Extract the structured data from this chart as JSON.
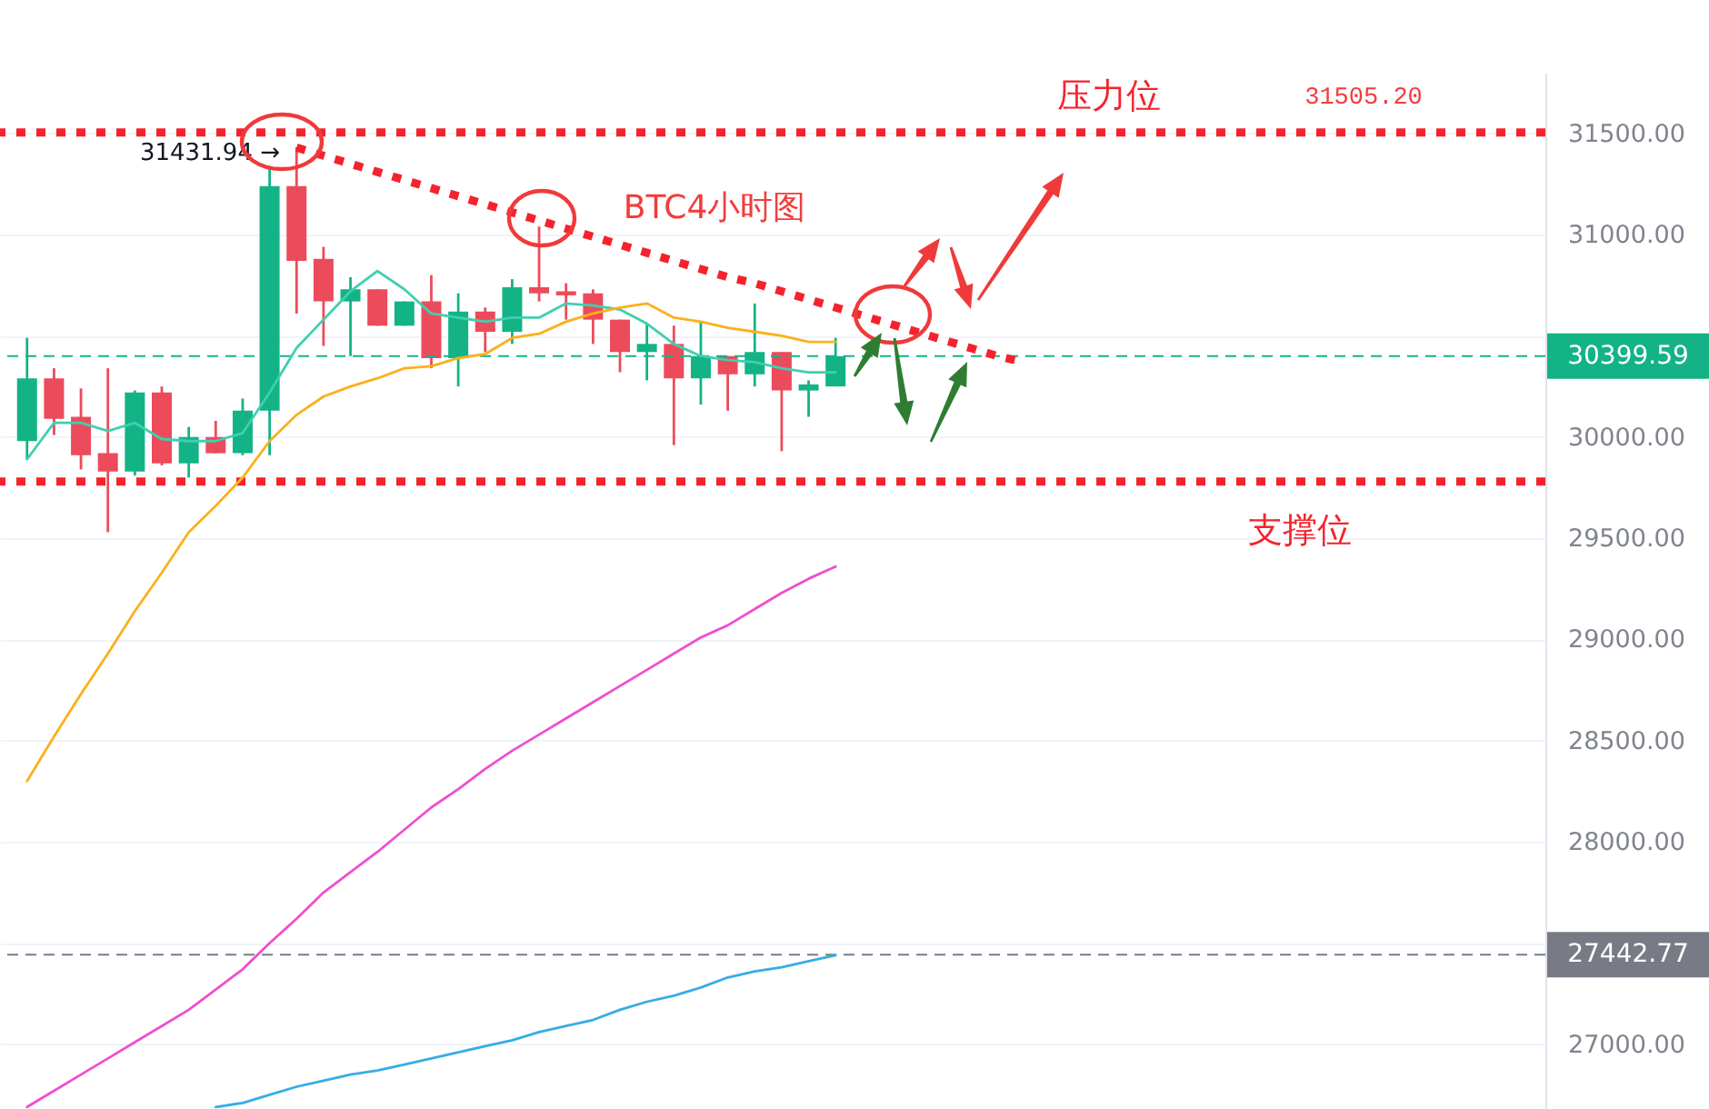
{
  "chart_data": {
    "type": "candlestick",
    "categories": [
      null,
      null,
      null,
      null,
      null,
      null,
      null,
      null,
      null,
      null,
      null,
      null,
      null,
      null,
      null,
      null,
      null,
      null,
      null,
      null,
      null,
      null,
      null,
      null,
      null,
      null,
      null,
      null,
      null,
      null,
      null,
      null,
      null,
      null,
      null,
      null,
      null,
      null
    ],
    "ohlc": [
      [
        29980,
        30490,
        29890,
        30290
      ],
      [
        30290,
        30340,
        30010,
        30090
      ],
      [
        30100,
        30240,
        29840,
        29910
      ],
      [
        29920,
        30340,
        29530,
        29830
      ],
      [
        29830,
        30230,
        29810,
        30220
      ],
      [
        30220,
        30250,
        29860,
        29870
      ],
      [
        29870,
        30050,
        29800,
        30000
      ],
      [
        30000,
        30080,
        29920,
        29920
      ],
      [
        29920,
        30190,
        29910,
        30130
      ],
      [
        30130,
        31340,
        29910,
        31240
      ],
      [
        31240,
        31431.94,
        30610,
        30870
      ],
      [
        30880,
        30940,
        30450,
        30670
      ],
      [
        30670,
        30790,
        30400,
        30730
      ],
      [
        30730,
        30730,
        30550,
        30550
      ],
      [
        30550,
        30670,
        30550,
        30670
      ],
      [
        30670,
        30800,
        30340,
        30390
      ],
      [
        30390,
        30710,
        30250,
        30620
      ],
      [
        30620,
        30640,
        30420,
        30520
      ],
      [
        30520,
        30780,
        30460,
        30740
      ],
      [
        30740,
        31040,
        30670,
        30710
      ],
      [
        30720,
        30760,
        30580,
        30700
      ],
      [
        30710,
        30730,
        30460,
        30580
      ],
      [
        30580,
        30580,
        30320,
        30420
      ],
      [
        30420,
        30560,
        30280,
        30460
      ],
      [
        30460,
        30550,
        29960,
        30290
      ],
      [
        30290,
        30570,
        30160,
        30400
      ],
      [
        30400,
        30400,
        30130,
        30310
      ],
      [
        30310,
        30660,
        30250,
        30420
      ],
      [
        30420,
        30420,
        29930,
        30230
      ],
      [
        30230,
        30280,
        30100,
        30260
      ],
      [
        30250,
        30490,
        30250,
        30399.59
      ],
      null,
      null,
      null,
      null,
      null,
      null,
      null
    ],
    "colors": [
      "#13b386",
      "#ec4b5b",
      "#ec4b5b",
      "#ec4b5b",
      "#13b386",
      "#ec4b5b",
      "#13b386",
      "#ec4b5b",
      "#13b386",
      "#13b386",
      "#ec4b5b",
      "#ec4b5b",
      "#13b386",
      "#ec4b5b",
      "#13b386",
      "#ec4b5b",
      "#13b386",
      "#ec4b5b",
      "#13b386",
      "#ec4b5b",
      "#ec4b5b",
      "#ec4b5b",
      "#ec4b5b",
      "#13b386",
      "#ec4b5b",
      "#13b386",
      "#ec4b5b",
      "#13b386",
      "#ec4b5b",
      "#13b386",
      "#13b386",
      null,
      null,
      null,
      null,
      null,
      null,
      null
    ],
    "series": [
      {
        "type": "line",
        "color": "#3fcfb0",
        "values": [
          29890,
          30070,
          30070,
          30030,
          30070,
          29990,
          29980,
          29980,
          30020,
          30220,
          30440,
          30580,
          30720,
          30820,
          30730,
          30610,
          30590,
          30570,
          30590,
          30590,
          30660,
          30650,
          30630,
          30560,
          30460,
          30400,
          30380,
          30370,
          30340,
          30320,
          30320,
          null,
          null,
          null,
          null,
          null,
          null,
          null
        ]
      },
      {
        "type": "line",
        "color": "#fbb01b",
        "values": [
          28300,
          28520,
          28730,
          28930,
          29140,
          29330,
          29530,
          29660,
          29800,
          29980,
          30110,
          30200,
          30250,
          30290,
          30340,
          30350,
          30390,
          30410,
          30490,
          30510,
          30570,
          30610,
          30640,
          30660,
          30590,
          30570,
          30540,
          30520,
          30500,
          30470,
          30470,
          null,
          null,
          null,
          null,
          null,
          null,
          null
        ]
      },
      {
        "type": "line",
        "color": "#ee4fcf",
        "values": [
          26690,
          26770,
          26850,
          26930,
          27010,
          27090,
          27170,
          27270,
          27370,
          27500,
          27620,
          27750,
          27850,
          27950,
          28060,
          28170,
          28260,
          28360,
          28450,
          28530,
          28610,
          28690,
          28770,
          28850,
          28930,
          29010,
          29070,
          29150,
          29230,
          29300,
          29360,
          null,
          null,
          null,
          null,
          null,
          null,
          null
        ]
      },
      {
        "type": "line",
        "color": "#37ace6",
        "values": [
          null,
          null,
          null,
          null,
          null,
          null,
          null,
          26690,
          26710,
          26750,
          26790,
          26820,
          26850,
          26870,
          26900,
          26930,
          26960,
          26990,
          27020,
          27060,
          27090,
          27120,
          27170,
          27210,
          27240,
          27280,
          27330,
          27360,
          27380,
          27410,
          27440,
          null,
          null,
          null,
          null,
          null,
          null,
          null
        ]
      },
      {
        "type": "line",
        "color": "#f5222d",
        "line_style": "dotted",
        "values": [
          null,
          null,
          null,
          null,
          null,
          null,
          null,
          null,
          null,
          null,
          31430,
          31390,
          31350,
          31310,
          31270,
          31230,
          31190,
          31150,
          31110,
          31070,
          31030,
          30990,
          30950,
          30910,
          30870,
          30830,
          30790,
          30760,
          30720,
          30680,
          30640,
          30600,
          30560,
          30520,
          30480,
          30440,
          30400,
          30370
        ]
      }
    ],
    "ylim": [
      26680,
      31800
    ],
    "yticks": [
      {
        "value": 27000,
        "label": "27000.00"
      },
      {
        "value": 27500,
        "label": null
      },
      {
        "value": 28000,
        "label": "28000.00"
      },
      {
        "value": 28500,
        "label": "28500.00"
      },
      {
        "value": 29000,
        "label": "29000.00"
      },
      {
        "value": 29500,
        "label": "29500.00"
      },
      {
        "value": 30000,
        "label": "30000.00"
      },
      {
        "value": 30500,
        "label": null
      },
      {
        "value": 31000,
        "label": "31000.00"
      },
      {
        "value": 31500,
        "label": "31500.00"
      }
    ],
    "ref_lines": [
      {
        "axis": "y",
        "value": 31505.2,
        "label": "压力位",
        "color": "#f5222d",
        "line_style": "dotted"
      },
      {
        "axis": "y",
        "value": 29780,
        "label": "支撑位",
        "color": "#f5222d",
        "line_style": "dotted"
      },
      {
        "axis": "y",
        "value": 30399.59,
        "label": "30399.59",
        "color": "#13b386",
        "line_style": "dashed"
      },
      {
        "axis": "y",
        "value": 27442.77,
        "label": "27442.77",
        "color": "#787b86",
        "line_style": "dashed"
      }
    ],
    "annotations": [
      "31431.94 →",
      {
        "text": "31505.20",
        "y": 31505.2
      },
      "BTC4小时图"
    ],
    "grid": "y",
    "tick_labels": "y"
  }
}
